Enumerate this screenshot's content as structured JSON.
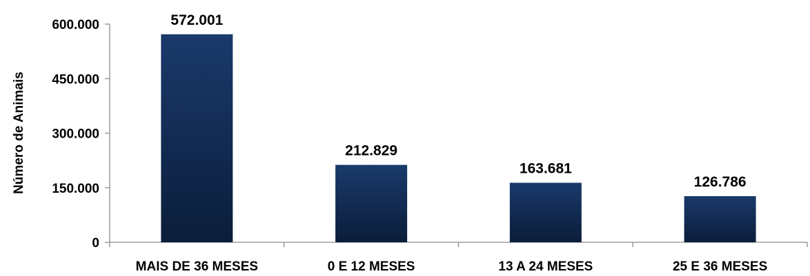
{
  "chart_data": {
    "type": "bar",
    "title": "",
    "xlabel": "",
    "ylabel": "Número de Animais",
    "categories": [
      "MAIS DE 36 MESES",
      "0 E 12 MESES",
      "13 A 24 MESES",
      "25 E 36 MESES"
    ],
    "values": [
      572001,
      212829,
      163681,
      126786
    ],
    "value_labels": [
      "572.001",
      "212.829",
      "163.681",
      "126.786"
    ],
    "ylim": [
      0,
      600000
    ],
    "yticks": [
      0,
      150000,
      300000,
      450000,
      600000
    ],
    "ytick_labels": [
      "0",
      "150.000",
      "300.000",
      "450.000",
      "600.000"
    ],
    "grid": false,
    "legend": "none",
    "colors": {
      "bar_top": "#1a3a6b",
      "bar_bottom": "#0b1d3a",
      "axis": "#8c8c8c",
      "text": "#000000"
    }
  }
}
